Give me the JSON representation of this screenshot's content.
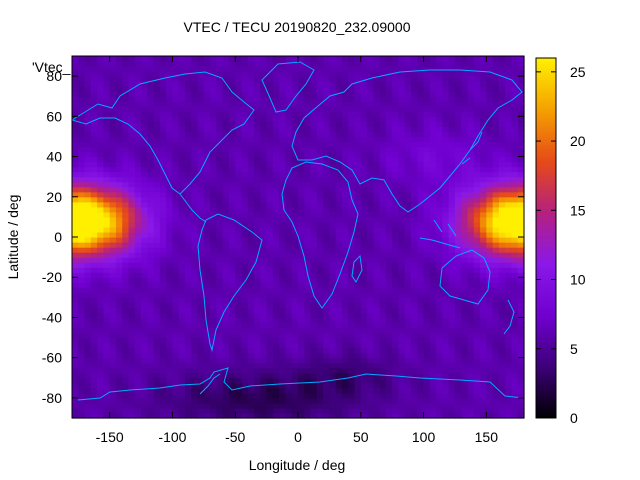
{
  "chart_data": {
    "type": "heatmap",
    "title": "VTEC / TECU 20190820_232.09000",
    "xlabel": "Longitude / deg",
    "ylabel": "Latitude / deg",
    "xlim": [
      -180,
      180
    ],
    "ylim": [
      -90,
      90
    ],
    "xticks": [
      -150,
      -100,
      -50,
      0,
      50,
      100,
      150
    ],
    "yticks": [
      -80,
      -60,
      -40,
      -20,
      0,
      20,
      40,
      60,
      80
    ],
    "colorbar": {
      "range": [
        0,
        26
      ],
      "ticks": [
        0,
        5,
        10,
        15,
        20,
        25
      ],
      "palette": [
        "#000000",
        "#3c0078",
        "#7000d0",
        "#8a18e8",
        "#b42080",
        "#e64a18",
        "#f5a000",
        "#fff000"
      ]
    },
    "legend": {
      "label": "'Vtec_",
      "position": "top-left"
    },
    "grid": false,
    "features": {
      "background_level": 6,
      "maxima": [
        {
          "lon": -160,
          "lat": 8,
          "value": 22
        },
        {
          "lon": 165,
          "lat": 8,
          "value": 22
        }
      ],
      "minimum": {
        "lon": -30,
        "lat": -80,
        "value": 1
      }
    }
  }
}
